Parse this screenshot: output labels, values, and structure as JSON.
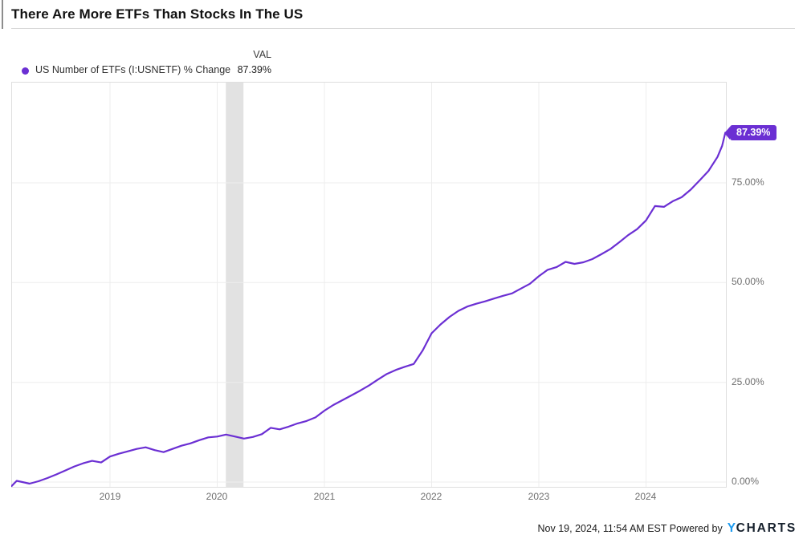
{
  "header": {
    "title": "There Are More ETFs Than Stocks In The US"
  },
  "legend": {
    "series_label": "US Number of ETFs (I:USNETF) % Change",
    "val_header": "VAL",
    "val_value": "87.39%"
  },
  "badge": {
    "label": "87.39%"
  },
  "footer": {
    "timestamp_and_powered": "Nov 19, 2024, 11:54 AM EST Powered by",
    "logo_y": "Y",
    "logo_rest": "CHARTS"
  },
  "colors": {
    "accent": "#6b2fd3",
    "line": "#6b2fd3",
    "grid": "#ededed",
    "plot_border": "#dfdfdf",
    "recession_band": "#e2e2e2",
    "tick_text": "#6e6e6e",
    "logo_blue": "#1e9bef",
    "logo_dark": "#16202c"
  },
  "chart_data": {
    "type": "line",
    "title": "There Are More ETFs Than Stocks In The US",
    "series_name": "US Number of ETFs (I:USNETF) % Change",
    "xlabel": "",
    "ylabel": "% Change",
    "y_axis_side": "right",
    "grid": true,
    "legend_position": "top-left",
    "xlim": [
      2018.079,
      2024.753
    ],
    "ylim": [
      -1.41,
      100.34
    ],
    "x_ticks": [
      {
        "t": 2019,
        "label": "2019"
      },
      {
        "t": 2020,
        "label": "2020"
      },
      {
        "t": 2021,
        "label": "2021"
      },
      {
        "t": 2022,
        "label": "2022"
      },
      {
        "t": 2023,
        "label": "2023"
      },
      {
        "t": 2024,
        "label": "2024"
      }
    ],
    "y_ticks": [
      {
        "v": 0,
        "label": "0.00%"
      },
      {
        "v": 25,
        "label": "25.00%"
      },
      {
        "v": 50,
        "label": "50.00%"
      },
      {
        "v": 75,
        "label": "75.00%"
      }
    ],
    "recession_band": {
      "x0": 2020.081,
      "x1": 2020.245
    },
    "x": [
      2018.083,
      2018.13,
      2018.2,
      2018.25,
      2018.333,
      2018.417,
      2018.5,
      2018.583,
      2018.667,
      2018.75,
      2018.833,
      2018.917,
      2019,
      2019.083,
      2019.167,
      2019.25,
      2019.333,
      2019.417,
      2019.5,
      2019.583,
      2019.667,
      2019.75,
      2019.833,
      2019.917,
      2020,
      2020.083,
      2020.167,
      2020.25,
      2020.333,
      2020.417,
      2020.5,
      2020.583,
      2020.667,
      2020.75,
      2020.833,
      2020.917,
      2021,
      2021.083,
      2021.167,
      2021.25,
      2021.333,
      2021.417,
      2021.5,
      2021.583,
      2021.667,
      2021.75,
      2021.833,
      2021.917,
      2022,
      2022.083,
      2022.167,
      2022.25,
      2022.333,
      2022.417,
      2022.5,
      2022.583,
      2022.667,
      2022.75,
      2022.833,
      2022.917,
      2023,
      2023.083,
      2023.167,
      2023.25,
      2023.333,
      2023.417,
      2023.5,
      2023.583,
      2023.667,
      2023.75,
      2023.833,
      2023.917,
      2024,
      2024.083,
      2024.167,
      2024.25,
      2024.333,
      2024.417,
      2024.5,
      2024.583,
      2024.667,
      2024.71,
      2024.74,
      2024.753
    ],
    "values": [
      -1.0,
      0.3,
      -0.1,
      -0.4,
      0.2,
      1.0,
      1.9,
      2.9,
      3.9,
      4.7,
      5.3,
      4.9,
      6.4,
      7.1,
      7.7,
      8.3,
      8.7,
      8.0,
      7.5,
      8.3,
      9.1,
      9.7,
      10.5,
      11.2,
      11.4,
      11.9,
      11.4,
      10.9,
      11.3,
      12.0,
      13.6,
      13.2,
      13.9,
      14.7,
      15.3,
      16.2,
      17.9,
      19.3,
      20.5,
      21.7,
      22.9,
      24.2,
      25.7,
      27.1,
      28.1,
      28.9,
      29.6,
      33.0,
      37.3,
      39.5,
      41.4,
      42.9,
      44.0,
      44.7,
      45.3,
      46.0,
      46.7,
      47.3,
      48.5,
      49.7,
      51.6,
      53.2,
      53.9,
      55.2,
      54.7,
      55.1,
      55.9,
      57.1,
      58.4,
      60.1,
      61.9,
      63.4,
      65.6,
      69.2,
      69.0,
      70.4,
      71.4,
      73.3,
      75.6,
      78.0,
      81.5,
      84.3,
      87.6,
      87.39
    ],
    "last_value": 87.39,
    "last_value_label": "87.39%"
  }
}
